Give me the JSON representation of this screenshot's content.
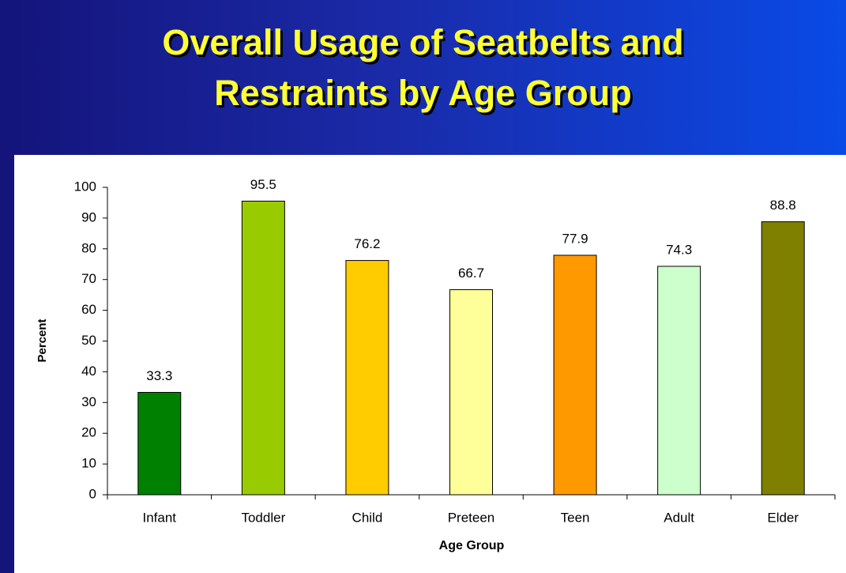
{
  "chart_data": {
    "type": "bar",
    "title": "Overall Usage of Seatbelts and Restraints by Age Group",
    "xlabel": "Age Group",
    "ylabel": "Percent",
    "categories": [
      "Infant",
      "Toddler",
      "Child",
      "Preteen",
      "Teen",
      "Adult",
      "Elder"
    ],
    "values": [
      33.3,
      95.5,
      76.2,
      66.7,
      77.9,
      74.3,
      88.8
    ],
    "colors": [
      "#008000",
      "#99cc00",
      "#ffcc00",
      "#ffff99",
      "#ff9900",
      "#ccffcc",
      "#808000"
    ],
    "ylim": [
      0,
      100
    ],
    "yticks": [
      0,
      10,
      20,
      30,
      40,
      50,
      60,
      70,
      80,
      90,
      100
    ],
    "grid": false
  }
}
